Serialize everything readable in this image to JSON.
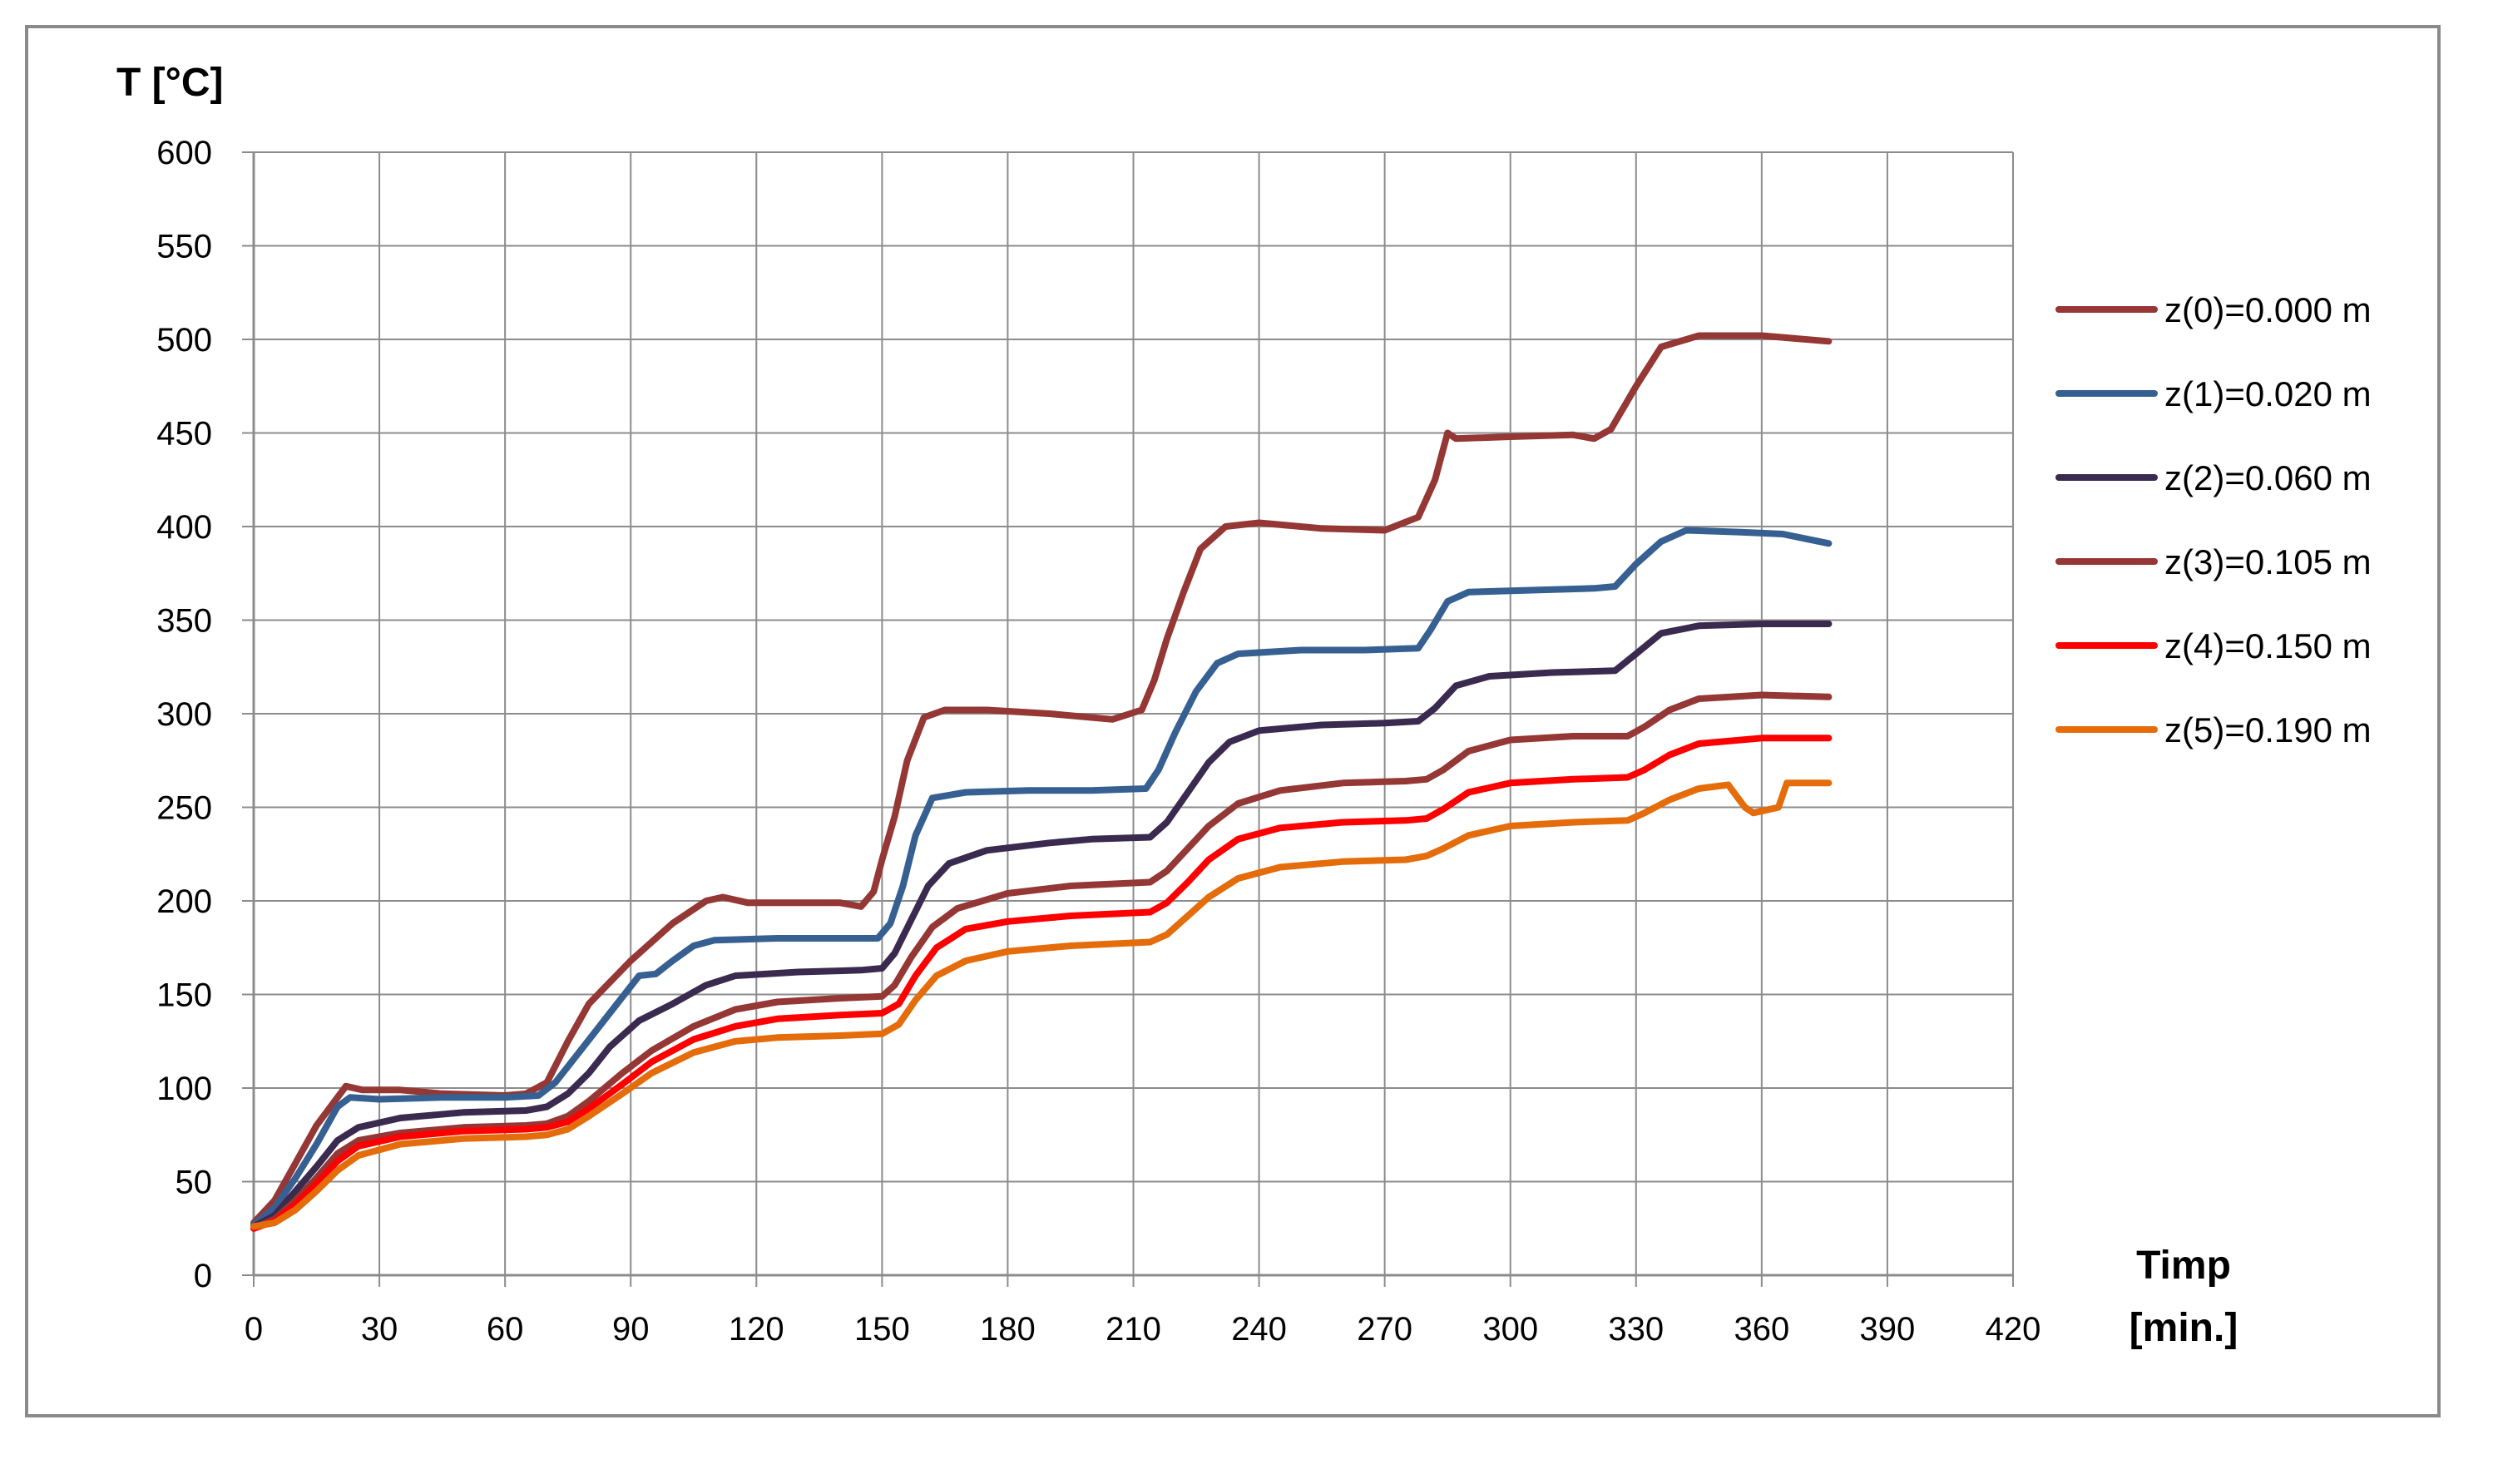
{
  "chart_data": {
    "type": "line",
    "title": "",
    "ylabel": "T [°C]",
    "xlabel_lines": [
      "Timp",
      "[min.]"
    ],
    "xlim": [
      0,
      420
    ],
    "ylim": [
      0,
      600
    ],
    "x_ticks": [
      0,
      30,
      60,
      90,
      120,
      150,
      180,
      210,
      240,
      270,
      300,
      330,
      360,
      390,
      420
    ],
    "y_ticks": [
      0,
      50,
      100,
      150,
      200,
      250,
      300,
      350,
      400,
      450,
      500,
      550,
      600
    ],
    "grid": true,
    "legend_position": "right",
    "series": [
      {
        "name": "z(0)=0.000 m",
        "color": "#953735",
        "points": [
          [
            0,
            28
          ],
          [
            5,
            40
          ],
          [
            10,
            60
          ],
          [
            15,
            80
          ],
          [
            22,
            101
          ],
          [
            26,
            99
          ],
          [
            35,
            99
          ],
          [
            45,
            97
          ],
          [
            60,
            96
          ],
          [
            65,
            97
          ],
          [
            70,
            103
          ],
          [
            75,
            125
          ],
          [
            80,
            145
          ],
          [
            90,
            168
          ],
          [
            100,
            188
          ],
          [
            108,
            200
          ],
          [
            112,
            202
          ],
          [
            118,
            199
          ],
          [
            130,
            199
          ],
          [
            140,
            199
          ],
          [
            145,
            197
          ],
          [
            148,
            205
          ],
          [
            150,
            222
          ],
          [
            153,
            245
          ],
          [
            156,
            275
          ],
          [
            160,
            298
          ],
          [
            165,
            302
          ],
          [
            175,
            302
          ],
          [
            190,
            300
          ],
          [
            205,
            297
          ],
          [
            212,
            302
          ],
          [
            215,
            318
          ],
          [
            218,
            340
          ],
          [
            222,
            365
          ],
          [
            226,
            388
          ],
          [
            232,
            400
          ],
          [
            240,
            402
          ],
          [
            255,
            399
          ],
          [
            270,
            398
          ],
          [
            278,
            405
          ],
          [
            282,
            425
          ],
          [
            285,
            450
          ],
          [
            287,
            447
          ],
          [
            300,
            448
          ],
          [
            315,
            449
          ],
          [
            320,
            447
          ],
          [
            324,
            452
          ],
          [
            330,
            475
          ],
          [
            336,
            496
          ],
          [
            345,
            502
          ],
          [
            360,
            502
          ],
          [
            376,
            499
          ]
        ]
      },
      {
        "name": "z(1)=0.020 m",
        "color": "#376092",
        "points": [
          [
            0,
            27
          ],
          [
            5,
            36
          ],
          [
            10,
            52
          ],
          [
            15,
            70
          ],
          [
            20,
            90
          ],
          [
            23,
            95
          ],
          [
            30,
            94
          ],
          [
            45,
            95
          ],
          [
            60,
            95
          ],
          [
            68,
            96
          ],
          [
            72,
            103
          ],
          [
            78,
            120
          ],
          [
            85,
            140
          ],
          [
            92,
            160
          ],
          [
            96,
            161
          ],
          [
            100,
            168
          ],
          [
            105,
            176
          ],
          [
            110,
            179
          ],
          [
            125,
            180
          ],
          [
            140,
            180
          ],
          [
            149,
            180
          ],
          [
            152,
            188
          ],
          [
            155,
            208
          ],
          [
            158,
            235
          ],
          [
            162,
            255
          ],
          [
            170,
            258
          ],
          [
            185,
            259
          ],
          [
            200,
            259
          ],
          [
            213,
            260
          ],
          [
            216,
            270
          ],
          [
            220,
            290
          ],
          [
            225,
            312
          ],
          [
            230,
            327
          ],
          [
            235,
            332
          ],
          [
            250,
            334
          ],
          [
            265,
            334
          ],
          [
            278,
            335
          ],
          [
            281,
            345
          ],
          [
            285,
            360
          ],
          [
            290,
            365
          ],
          [
            305,
            366
          ],
          [
            320,
            367
          ],
          [
            325,
            368
          ],
          [
            330,
            380
          ],
          [
            336,
            392
          ],
          [
            342,
            398
          ],
          [
            355,
            397
          ],
          [
            365,
            396
          ],
          [
            376,
            391
          ]
        ]
      },
      {
        "name": "z(2)=0.060 m",
        "color": "#3b2a4f",
        "points": [
          [
            0,
            26
          ],
          [
            5,
            32
          ],
          [
            10,
            45
          ],
          [
            15,
            58
          ],
          [
            20,
            72
          ],
          [
            25,
            79
          ],
          [
            35,
            84
          ],
          [
            50,
            87
          ],
          [
            65,
            88
          ],
          [
            70,
            90
          ],
          [
            75,
            97
          ],
          [
            80,
            108
          ],
          [
            85,
            122
          ],
          [
            92,
            136
          ],
          [
            100,
            145
          ],
          [
            108,
            155
          ],
          [
            115,
            160
          ],
          [
            130,
            162
          ],
          [
            145,
            163
          ],
          [
            150,
            164
          ],
          [
            153,
            172
          ],
          [
            157,
            190
          ],
          [
            161,
            208
          ],
          [
            166,
            220
          ],
          [
            175,
            227
          ],
          [
            190,
            231
          ],
          [
            200,
            233
          ],
          [
            214,
            234
          ],
          [
            218,
            242
          ],
          [
            223,
            258
          ],
          [
            228,
            274
          ],
          [
            233,
            285
          ],
          [
            240,
            291
          ],
          [
            255,
            294
          ],
          [
            270,
            295
          ],
          [
            278,
            296
          ],
          [
            282,
            303
          ],
          [
            287,
            315
          ],
          [
            295,
            320
          ],
          [
            310,
            322
          ],
          [
            325,
            323
          ],
          [
            330,
            332
          ],
          [
            336,
            343
          ],
          [
            345,
            347
          ],
          [
            360,
            348
          ],
          [
            376,
            348
          ]
        ]
      },
      {
        "name": "z(3)=0.105 m",
        "color": "#953735",
        "points": [
          [
            0,
            25
          ],
          [
            5,
            30
          ],
          [
            10,
            40
          ],
          [
            15,
            52
          ],
          [
            20,
            65
          ],
          [
            25,
            72
          ],
          [
            35,
            76
          ],
          [
            50,
            79
          ],
          [
            65,
            80
          ],
          [
            70,
            81
          ],
          [
            75,
            85
          ],
          [
            80,
            93
          ],
          [
            88,
            108
          ],
          [
            95,
            120
          ],
          [
            105,
            133
          ],
          [
            115,
            142
          ],
          [
            125,
            146
          ],
          [
            140,
            148
          ],
          [
            150,
            149
          ],
          [
            153,
            155
          ],
          [
            157,
            170
          ],
          [
            162,
            186
          ],
          [
            168,
            196
          ],
          [
            180,
            204
          ],
          [
            195,
            208
          ],
          [
            214,
            210
          ],
          [
            218,
            216
          ],
          [
            223,
            228
          ],
          [
            228,
            240
          ],
          [
            235,
            252
          ],
          [
            245,
            259
          ],
          [
            260,
            263
          ],
          [
            275,
            264
          ],
          [
            280,
            265
          ],
          [
            284,
            270
          ],
          [
            290,
            280
          ],
          [
            300,
            286
          ],
          [
            315,
            288
          ],
          [
            328,
            288
          ],
          [
            332,
            293
          ],
          [
            338,
            302
          ],
          [
            345,
            308
          ],
          [
            360,
            310
          ],
          [
            376,
            309
          ]
        ]
      },
      {
        "name": "z(4)=0.150 m",
        "color": "#ff0000",
        "points": [
          [
            0,
            25
          ],
          [
            5,
            29
          ],
          [
            10,
            38
          ],
          [
            15,
            49
          ],
          [
            20,
            61
          ],
          [
            25,
            69
          ],
          [
            35,
            74
          ],
          [
            50,
            77
          ],
          [
            65,
            78
          ],
          [
            70,
            79
          ],
          [
            75,
            82
          ],
          [
            80,
            89
          ],
          [
            88,
            102
          ],
          [
            95,
            114
          ],
          [
            105,
            126
          ],
          [
            115,
            133
          ],
          [
            125,
            137
          ],
          [
            140,
            139
          ],
          [
            150,
            140
          ],
          [
            154,
            145
          ],
          [
            158,
            160
          ],
          [
            163,
            175
          ],
          [
            170,
            185
          ],
          [
            180,
            189
          ],
          [
            195,
            192
          ],
          [
            214,
            194
          ],
          [
            218,
            199
          ],
          [
            223,
            210
          ],
          [
            228,
            222
          ],
          [
            235,
            233
          ],
          [
            245,
            239
          ],
          [
            260,
            242
          ],
          [
            275,
            243
          ],
          [
            280,
            244
          ],
          [
            284,
            249
          ],
          [
            290,
            258
          ],
          [
            300,
            263
          ],
          [
            315,
            265
          ],
          [
            328,
            266
          ],
          [
            332,
            270
          ],
          [
            338,
            278
          ],
          [
            345,
            284
          ],
          [
            360,
            287
          ],
          [
            376,
            287
          ]
        ]
      },
      {
        "name": "z(5)=0.190 m",
        "color": "#e46c0a",
        "points": [
          [
            0,
            26
          ],
          [
            5,
            28
          ],
          [
            10,
            35
          ],
          [
            15,
            45
          ],
          [
            20,
            56
          ],
          [
            25,
            64
          ],
          [
            35,
            70
          ],
          [
            50,
            73
          ],
          [
            65,
            74
          ],
          [
            70,
            75
          ],
          [
            75,
            78
          ],
          [
            80,
            85
          ],
          [
            88,
            97
          ],
          [
            95,
            108
          ],
          [
            105,
            119
          ],
          [
            115,
            125
          ],
          [
            125,
            127
          ],
          [
            140,
            128
          ],
          [
            150,
            129
          ],
          [
            154,
            134
          ],
          [
            158,
            147
          ],
          [
            163,
            160
          ],
          [
            170,
            168
          ],
          [
            180,
            173
          ],
          [
            195,
            176
          ],
          [
            214,
            178
          ],
          [
            218,
            182
          ],
          [
            223,
            192
          ],
          [
            228,
            202
          ],
          [
            235,
            212
          ],
          [
            245,
            218
          ],
          [
            260,
            221
          ],
          [
            275,
            222
          ],
          [
            280,
            224
          ],
          [
            284,
            228
          ],
          [
            290,
            235
          ],
          [
            300,
            240
          ],
          [
            315,
            242
          ],
          [
            328,
            243
          ],
          [
            332,
            247
          ],
          [
            338,
            254
          ],
          [
            345,
            260
          ],
          [
            352,
            262
          ],
          [
            354,
            256
          ],
          [
            356,
            250
          ],
          [
            358,
            247
          ],
          [
            362,
            249
          ],
          [
            364,
            250
          ],
          [
            366,
            263
          ],
          [
            370,
            263
          ],
          [
            376,
            263
          ]
        ]
      }
    ]
  }
}
